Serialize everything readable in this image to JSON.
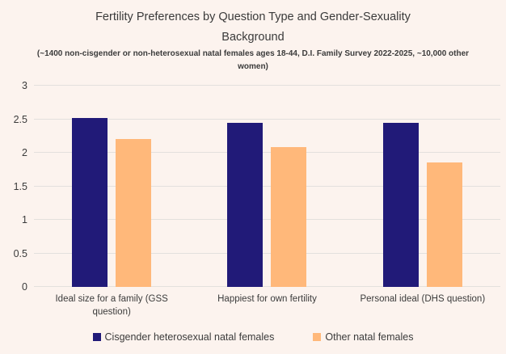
{
  "title": "Fertility Preferences by Question Type and Gender-Sexuality Background",
  "subtitle": "(~1400 non-cisgender or non-heterosexual natal females ages 18-44, D.I. Family Survey 2022-2025, ~10,000 other women)",
  "colors": {
    "background": "#fcf3ee",
    "gridline": "#e3e0dd",
    "text": "#3b3b3b",
    "series1": "#211a78",
    "series2": "#ffb87a"
  },
  "chart_data": {
    "type": "bar",
    "title": "Fertility Preferences by Question Type and Gender-Sexuality Background",
    "subtitle": "(~1400 non-cisgender or non-heterosexual natal females ages 18-44, D.I. Family Survey 2022-2025, ~10,000 other women)",
    "categories": [
      "Ideal size for a family (GSS question)",
      "Happiest for own fertility",
      "Personal ideal (DHS question)"
    ],
    "series": [
      {
        "name": "Cisgender heterosexual natal females",
        "color": "#211a78",
        "values": [
          2.52,
          2.45,
          2.45
        ]
      },
      {
        "name": "Other natal females",
        "color": "#ffb87a",
        "values": [
          2.21,
          2.08,
          1.86
        ]
      }
    ],
    "xlabel": "",
    "ylabel": "",
    "ylim": [
      0,
      3
    ],
    "yticks": [
      "0",
      "0.5",
      "1",
      "1.5",
      "2",
      "2.5",
      "3"
    ],
    "grid": true,
    "legend_position": "bottom"
  }
}
